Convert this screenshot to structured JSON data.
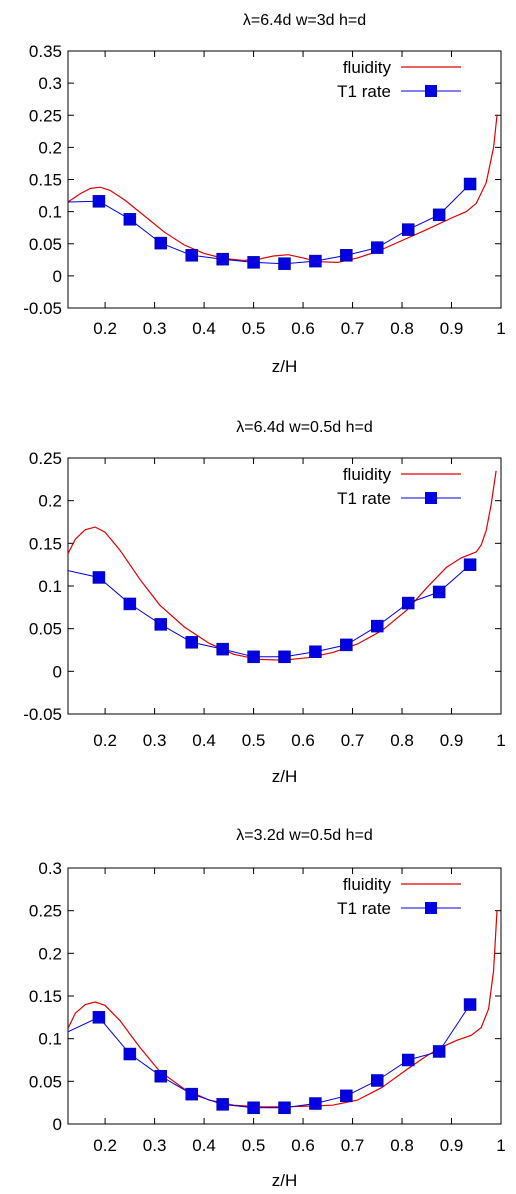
{
  "chart_data": [
    {
      "type": "line",
      "title": "λ=6.4d w=3d h=d",
      "xlabel": "z/H",
      "ylabel": "",
      "xlim": [
        0.125,
        1.0
      ],
      "ylim": [
        -0.05,
        0.35
      ],
      "x_ticks": [
        "0.2",
        "0.3",
        "0.4",
        "0.5",
        "0.6",
        "0.7",
        "0.8",
        "0.9",
        "1"
      ],
      "y_ticks": [
        "-0.05",
        "0",
        "0.05",
        "0.1",
        "0.15",
        "0.2",
        "0.25",
        "0.3",
        "0.35"
      ],
      "grid": false,
      "legend_position": "top-right",
      "series": [
        {
          "name": "fluidity",
          "color": "#e00000",
          "style": "line",
          "x": [
            0.125,
            0.15,
            0.17,
            0.19,
            0.21,
            0.24,
            0.28,
            0.32,
            0.36,
            0.4,
            0.44,
            0.48,
            0.51,
            0.54,
            0.57,
            0.6,
            0.63,
            0.67,
            0.71,
            0.75,
            0.8,
            0.85,
            0.9,
            0.93,
            0.95,
            0.97,
            0.985,
            0.992
          ],
          "y": [
            0.115,
            0.128,
            0.136,
            0.138,
            0.133,
            0.118,
            0.093,
            0.068,
            0.048,
            0.035,
            0.027,
            0.024,
            0.026,
            0.031,
            0.033,
            0.028,
            0.022,
            0.021,
            0.028,
            0.038,
            0.055,
            0.072,
            0.09,
            0.1,
            0.113,
            0.145,
            0.2,
            0.25
          ]
        },
        {
          "name": "T1 rate",
          "color": "#0000e0",
          "style": "line-square",
          "x_line_start": 0.125,
          "y_line_start": 0.115,
          "x": [
            0.1875,
            0.25,
            0.3125,
            0.375,
            0.4375,
            0.5,
            0.5625,
            0.625,
            0.6875,
            0.75,
            0.8125,
            0.875,
            0.9375
          ],
          "y": [
            0.116,
            0.088,
            0.051,
            0.032,
            0.026,
            0.021,
            0.019,
            0.023,
            0.032,
            0.044,
            0.072,
            0.095,
            0.143
          ]
        }
      ]
    },
    {
      "type": "line",
      "title": "λ=6.4d w=0.5d h=d",
      "xlabel": "z/H",
      "ylabel": "",
      "xlim": [
        0.125,
        1.0
      ],
      "ylim": [
        -0.05,
        0.25
      ],
      "x_ticks": [
        "0.2",
        "0.3",
        "0.4",
        "0.5",
        "0.6",
        "0.7",
        "0.8",
        "0.9",
        "1"
      ],
      "y_ticks": [
        "-0.05",
        "0",
        "0.05",
        "0.1",
        "0.15",
        "0.2",
        "0.25"
      ],
      "grid": false,
      "legend_position": "top-right",
      "series": [
        {
          "name": "fluidity",
          "color": "#e00000",
          "style": "line",
          "x": [
            0.125,
            0.14,
            0.16,
            0.18,
            0.2,
            0.23,
            0.27,
            0.31,
            0.36,
            0.41,
            0.46,
            0.51,
            0.56,
            0.61,
            0.66,
            0.71,
            0.76,
            0.81,
            0.85,
            0.89,
            0.92,
            0.95,
            0.96,
            0.97,
            0.98,
            0.99
          ],
          "y": [
            0.138,
            0.155,
            0.166,
            0.169,
            0.163,
            0.142,
            0.108,
            0.078,
            0.052,
            0.033,
            0.02,
            0.014,
            0.013,
            0.016,
            0.022,
            0.032,
            0.048,
            0.072,
            0.098,
            0.122,
            0.133,
            0.14,
            0.148,
            0.165,
            0.195,
            0.235
          ]
        },
        {
          "name": "T1 rate",
          "color": "#0000e0",
          "style": "line-square",
          "x_line_start": 0.125,
          "y_line_start": 0.118,
          "x": [
            0.1875,
            0.25,
            0.3125,
            0.375,
            0.4375,
            0.5,
            0.5625,
            0.625,
            0.6875,
            0.75,
            0.8125,
            0.875,
            0.9375
          ],
          "y": [
            0.11,
            0.079,
            0.055,
            0.034,
            0.026,
            0.017,
            0.017,
            0.023,
            0.031,
            0.053,
            0.08,
            0.093,
            0.125
          ]
        }
      ]
    },
    {
      "type": "line",
      "title": "λ=3.2d w=0.5d h=d",
      "xlabel": "z/H",
      "ylabel": "",
      "xlim": [
        0.125,
        1.0
      ],
      "ylim": [
        0,
        0.3
      ],
      "x_ticks": [
        "0.2",
        "0.3",
        "0.4",
        "0.5",
        "0.6",
        "0.7",
        "0.8",
        "0.9",
        "1"
      ],
      "y_ticks": [
        "0",
        "0.05",
        "0.1",
        "0.15",
        "0.2",
        "0.25",
        "0.3"
      ],
      "grid": false,
      "legend_position": "top-right",
      "series": [
        {
          "name": "fluidity",
          "color": "#e00000",
          "style": "line",
          "x": [
            0.125,
            0.14,
            0.16,
            0.18,
            0.2,
            0.23,
            0.27,
            0.31,
            0.36,
            0.41,
            0.46,
            0.51,
            0.56,
            0.61,
            0.66,
            0.71,
            0.76,
            0.81,
            0.85,
            0.88,
            0.91,
            0.94,
            0.96,
            0.975,
            0.985,
            0.992
          ],
          "y": [
            0.112,
            0.13,
            0.14,
            0.143,
            0.139,
            0.121,
            0.09,
            0.062,
            0.041,
            0.028,
            0.022,
            0.02,
            0.02,
            0.021,
            0.022,
            0.028,
            0.043,
            0.064,
            0.08,
            0.09,
            0.098,
            0.104,
            0.113,
            0.135,
            0.18,
            0.25
          ]
        },
        {
          "name": "T1 rate",
          "color": "#0000e0",
          "style": "line-square",
          "x_line_start": 0.125,
          "y_line_start": 0.108,
          "x": [
            0.1875,
            0.25,
            0.3125,
            0.375,
            0.4375,
            0.5,
            0.5625,
            0.625,
            0.6875,
            0.75,
            0.8125,
            0.875,
            0.9375
          ],
          "y": [
            0.125,
            0.082,
            0.056,
            0.035,
            0.023,
            0.019,
            0.019,
            0.024,
            0.033,
            0.051,
            0.075,
            0.085,
            0.14
          ]
        }
      ]
    }
  ]
}
